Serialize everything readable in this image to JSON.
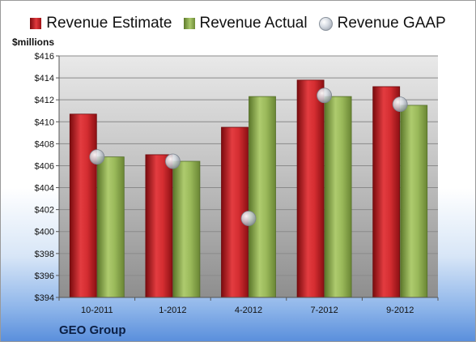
{
  "legend": {
    "estimate_label": "Revenue Estimate",
    "actual_label": "Revenue Actual",
    "gaap_label": "Revenue GAAP"
  },
  "units_label": "$millions",
  "company": "GEO Group",
  "colors": {
    "estimate": "#c8252a",
    "actual": "#8db04e",
    "gaap": "#c9ced6"
  },
  "chart_data": {
    "type": "bar",
    "categories": [
      "10-2011",
      "1-2012",
      "4-2012",
      "7-2012",
      "9-2012"
    ],
    "series": [
      {
        "name": "Revenue Estimate",
        "kind": "bar",
        "values": [
          410.7,
          407.0,
          409.5,
          413.8,
          413.2
        ]
      },
      {
        "name": "Revenue Actual",
        "kind": "bar",
        "values": [
          406.8,
          406.4,
          412.3,
          412.3,
          411.5
        ]
      },
      {
        "name": "Revenue GAAP",
        "kind": "marker",
        "values": [
          406.8,
          406.4,
          401.2,
          412.4,
          411.6
        ]
      }
    ],
    "ylabel": "$millions",
    "ylim": [
      394,
      416
    ],
    "yticks": [
      "$394",
      "$396",
      "$398",
      "$400",
      "$402",
      "$404",
      "$406",
      "$408",
      "$410",
      "$412",
      "$414",
      "$416"
    ],
    "grid": true,
    "legend_position": "top"
  }
}
